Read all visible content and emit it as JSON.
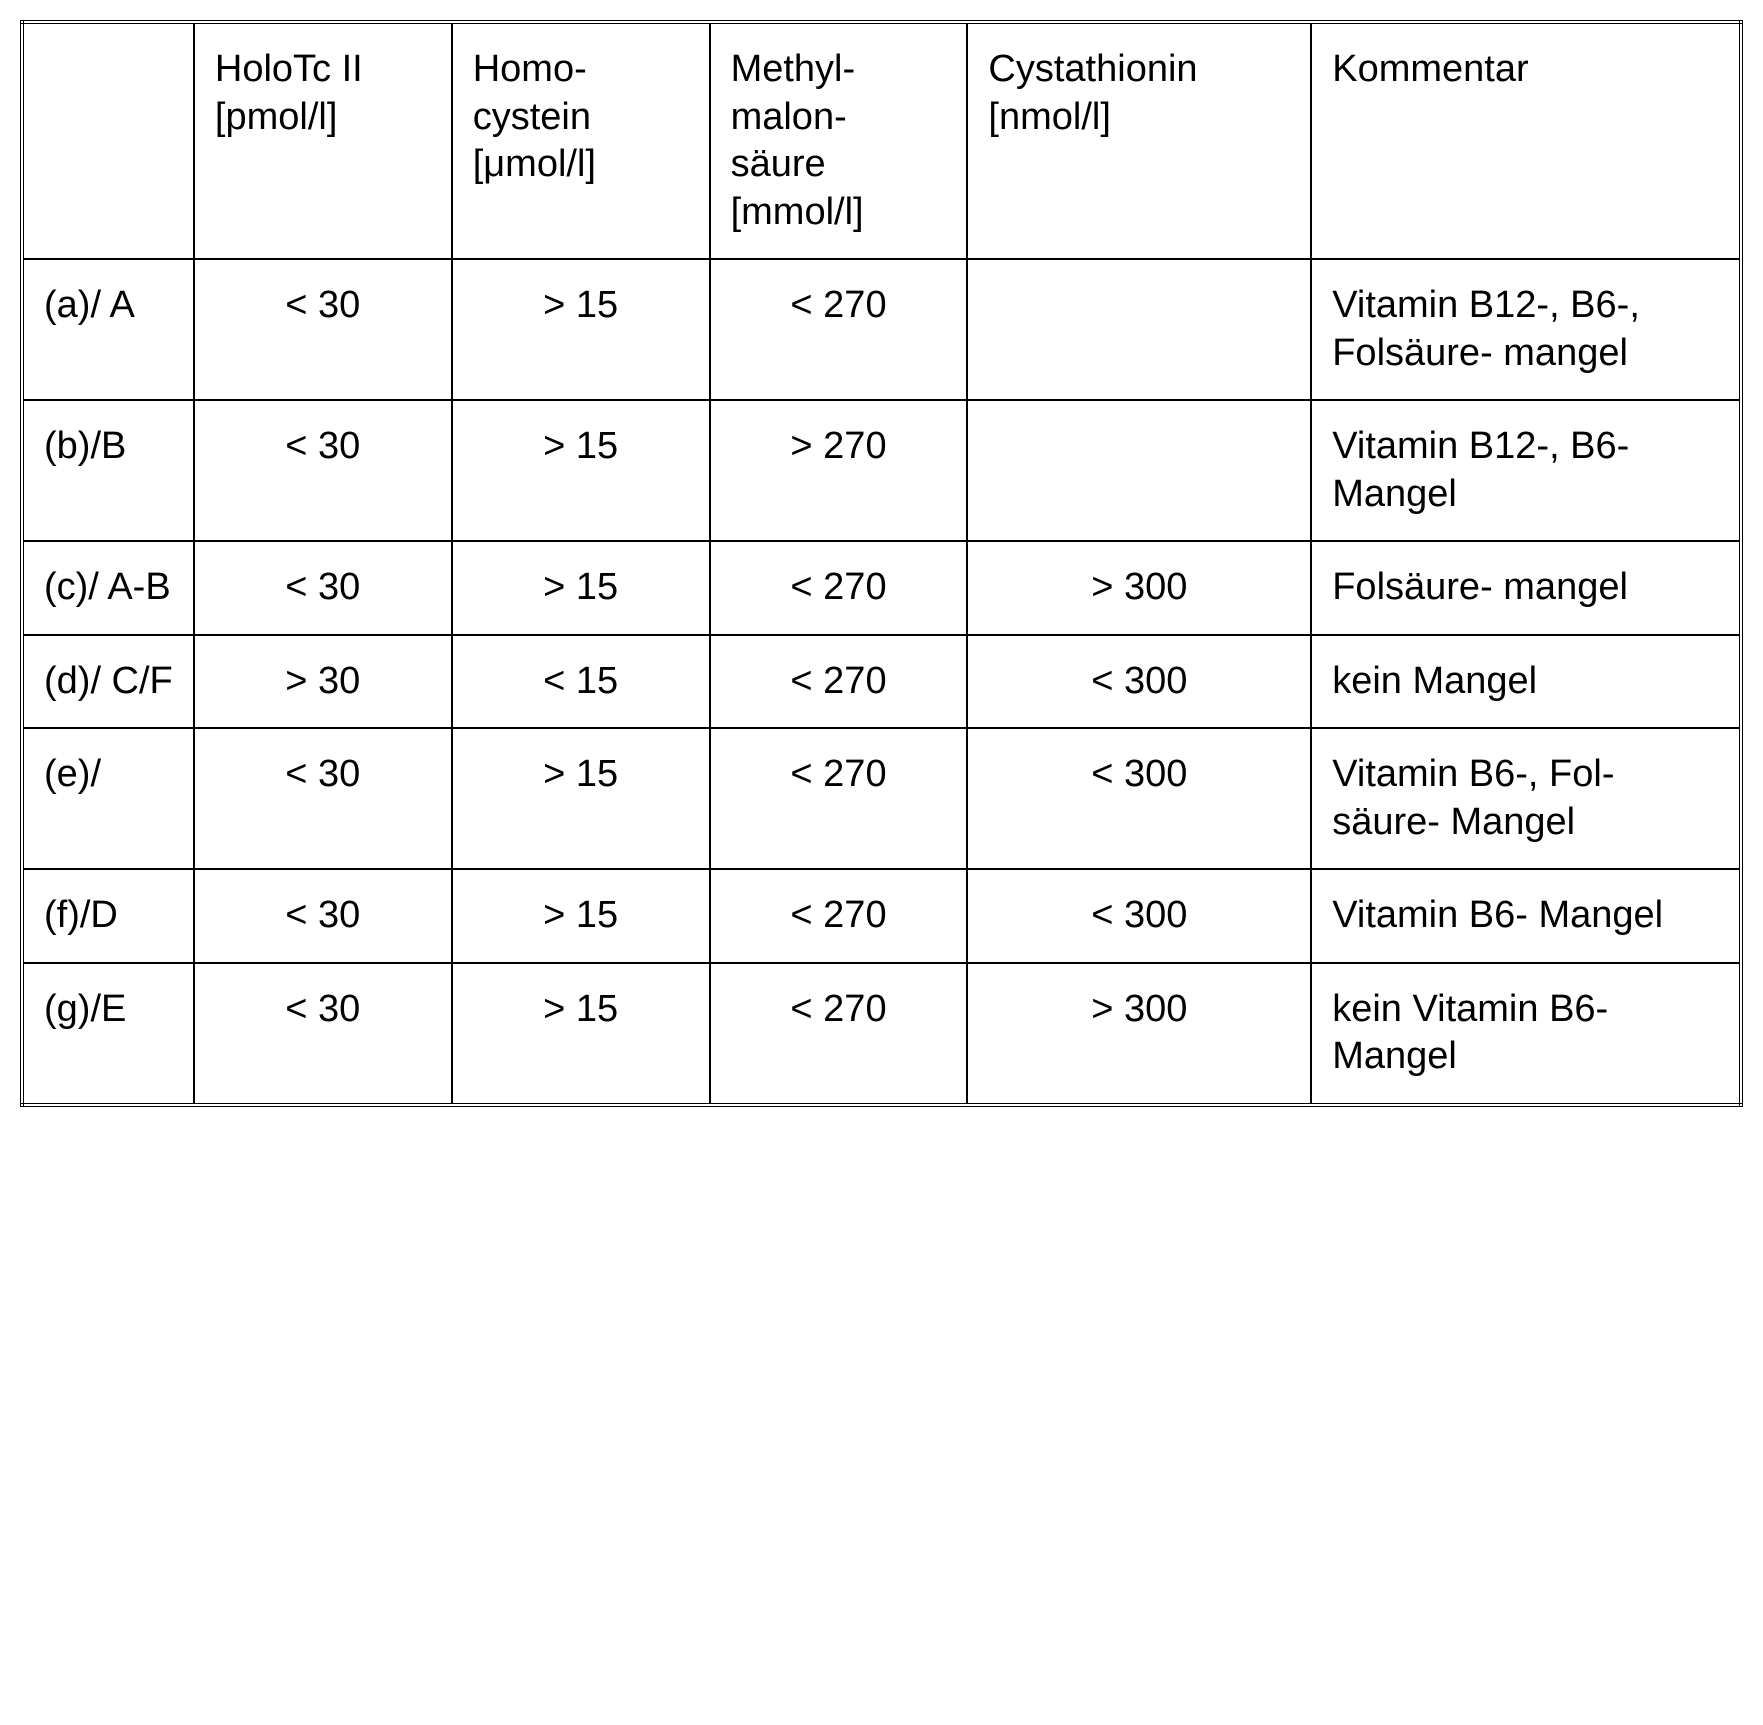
{
  "table": {
    "type": "table",
    "background_color": "#ffffff",
    "border_color": "#000000",
    "text_color": "#000000",
    "font_size_pt": 28,
    "columns": [
      {
        "key": "label",
        "header": "",
        "width_pct": 10,
        "align": "left"
      },
      {
        "key": "holotc",
        "header": "HoloTc II [pmol/l]",
        "width_pct": 15,
        "align": "center"
      },
      {
        "key": "homocystein",
        "header": "Homo-\ncystein [μmol/l]",
        "width_pct": 15,
        "align": "center"
      },
      {
        "key": "methylmalon",
        "header": "Methyl-\nmalon-\nsäure [mmol/l]",
        "width_pct": 15,
        "align": "center"
      },
      {
        "key": "cystathionin",
        "header": "Cystathionin [nmol/l]",
        "width_pct": 20,
        "align": "center"
      },
      {
        "key": "kommentar",
        "header": "Kommentar",
        "width_pct": 25,
        "align": "left"
      }
    ],
    "rows": [
      {
        "label": "(a)/\nA",
        "holotc": "< 30",
        "homocystein": "> 15",
        "methylmalon": "< 270",
        "cystathionin": "",
        "kommentar": "Vitamin B12-, B6-, Folsäure-\nmangel"
      },
      {
        "label": "(b)/B",
        "holotc": "< 30",
        "homocystein": "> 15",
        "methylmalon": "> 270",
        "cystathionin": "",
        "kommentar": "Vitamin B12-, B6-\nMangel"
      },
      {
        "label": "(c)/\nA-B",
        "holotc": "< 30",
        "homocystein": "> 15",
        "methylmalon": "< 270",
        "cystathionin": "> 300",
        "kommentar": "Folsäure-\nmangel"
      },
      {
        "label": "(d)/\nC/F",
        "holotc": "> 30",
        "homocystein": "< 15",
        "methylmalon": "< 270",
        "cystathionin": "< 300",
        "kommentar": "kein Mangel"
      },
      {
        "label": "(e)/",
        "holotc": "< 30",
        "homocystein": "> 15",
        "methylmalon": "< 270",
        "cystathionin": "< 300",
        "kommentar": "Vitamin B6-, Fol-\nsäure-\nMangel"
      },
      {
        "label": "(f)/D",
        "holotc": "< 30",
        "homocystein": "> 15",
        "methylmalon": "< 270",
        "cystathionin": "< 300",
        "kommentar": "Vitamin B6-\nMangel"
      },
      {
        "label": "(g)/E",
        "holotc": "< 30",
        "homocystein": "> 15",
        "methylmalon": "< 270",
        "cystathionin": "> 300",
        "kommentar": "kein Vitamin B6-\nMangel"
      }
    ]
  }
}
